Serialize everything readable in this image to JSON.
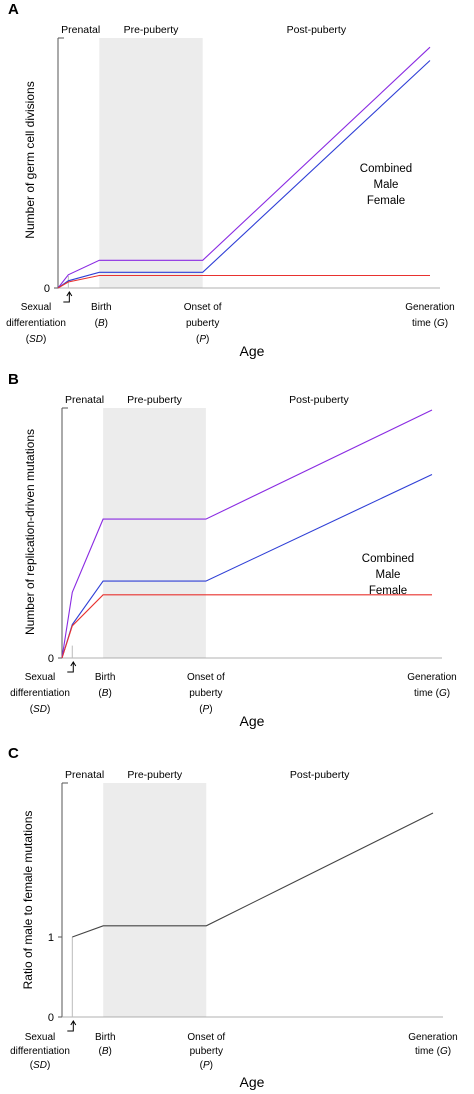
{
  "colors": {
    "combined": "#8a2be2",
    "male": "#2f3fd6",
    "female": "#e8322f",
    "ratio": "#444444",
    "shade": "#ececec"
  },
  "chart_data": [
    {
      "type": "line",
      "panel": "A",
      "ylabel": "Number of germ cell divisions",
      "xlabel": "Age",
      "phases": [
        "Prenatal",
        "Pre-puberty",
        "Post-puberty"
      ],
      "x_ticks": [
        {
          "lines": [
            "Sexual",
            "differentiation",
            "(SD)"
          ]
        },
        {
          "lines": [
            "Birth",
            "(B)"
          ]
        },
        {
          "lines": [
            "Onset of",
            "puberty",
            "(P)"
          ]
        },
        {
          "lines": [
            "Generation",
            "time (G)"
          ]
        }
      ],
      "y_ticks": [
        "0"
      ],
      "legend_position": "right",
      "x_positions": {
        "SD": 0.0,
        "SD_plus": 0.05,
        "B": 0.2,
        "P": 0.7,
        "G": 1.8
      },
      "series": [
        {
          "name": "Combined",
          "color_key": "combined",
          "x": [
            0.0,
            0.05,
            0.2,
            0.7,
            1.8
          ],
          "y": [
            0.0,
            0.055,
            0.115,
            0.115,
            1.0
          ]
        },
        {
          "name": "Male",
          "color_key": "male",
          "x": [
            0.0,
            0.05,
            0.2,
            0.7,
            1.8
          ],
          "y": [
            0.0,
            0.03,
            0.065,
            0.065,
            0.945
          ]
        },
        {
          "name": "Female",
          "color_key": "female",
          "x": [
            0.0,
            0.05,
            0.2,
            0.7,
            1.8
          ],
          "y": [
            0.0,
            0.025,
            0.052,
            0.052,
            0.052
          ]
        }
      ],
      "ylim": [
        0,
        1.03
      ]
    },
    {
      "type": "line",
      "panel": "B",
      "ylabel": "Number of replication-driven mutations",
      "xlabel": "Age",
      "phases": [
        "Prenatal",
        "Pre-puberty",
        "Post-puberty"
      ],
      "x_ticks": [
        {
          "lines": [
            "Sexual",
            "differentiation",
            "(SD)"
          ]
        },
        {
          "lines": [
            "Birth",
            "(B)"
          ]
        },
        {
          "lines": [
            "Onset of",
            "puberty",
            "(P)"
          ]
        },
        {
          "lines": [
            "Generation",
            "time (G)"
          ]
        }
      ],
      "y_ticks": [
        "0"
      ],
      "legend_position": "right",
      "x_positions": {
        "SD": 0.0,
        "SD_plus": 0.05,
        "B": 0.2,
        "P": 0.7,
        "G": 1.8
      },
      "series": [
        {
          "name": "Combined",
          "color_key": "combined",
          "x": [
            0.0,
            0.05,
            0.2,
            0.7,
            1.8
          ],
          "y": [
            0.0,
            0.265,
            0.56,
            0.56,
            1.0
          ]
        },
        {
          "name": "Male",
          "color_key": "male",
          "x": [
            0.0,
            0.05,
            0.2,
            0.7,
            1.8
          ],
          "y": [
            0.0,
            0.135,
            0.31,
            0.31,
            0.74
          ]
        },
        {
          "name": "Female",
          "color_key": "female",
          "x": [
            0.0,
            0.05,
            0.2,
            0.7,
            1.8
          ],
          "y": [
            0.0,
            0.13,
            0.255,
            0.255,
            0.255
          ]
        }
      ],
      "ylim": [
        0,
        1.0
      ]
    },
    {
      "type": "line",
      "panel": "C",
      "ylabel": "Ratio of male to female mutations",
      "xlabel": "Age",
      "phases": [
        "Prenatal",
        "Pre-puberty",
        "Post-puberty"
      ],
      "x_ticks": [
        {
          "lines": [
            "Sexual",
            "differentiation",
            "(SD)"
          ]
        },
        {
          "lines": [
            "Birth",
            "(B)"
          ]
        },
        {
          "lines": [
            "Onset of",
            "puberty",
            "(P)"
          ]
        },
        {
          "lines": [
            "Generation",
            "time (G)"
          ]
        }
      ],
      "y_ticks": [
        "0",
        "1"
      ],
      "x_positions": {
        "SD": 0.0,
        "SD_plus": 0.05,
        "B": 0.2,
        "P": 0.7,
        "G": 1.8
      },
      "series": [
        {
          "name": "",
          "color_key": "ratio",
          "x": [
            0.05,
            0.2,
            0.7,
            1.8
          ],
          "y": [
            1.0,
            1.14,
            1.14,
            2.55
          ]
        }
      ],
      "ylim": [
        0,
        2.9
      ]
    }
  ]
}
